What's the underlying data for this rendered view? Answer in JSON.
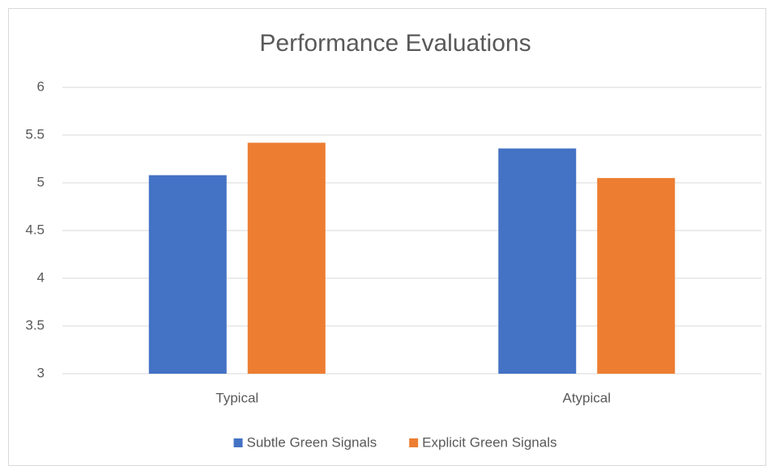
{
  "chart_data": {
    "type": "bar",
    "title": "Performance Evaluations",
    "categories": [
      "Typical",
      "Atypical"
    ],
    "series": [
      {
        "name": "Subtle Green Signals",
        "color": "#4472c4",
        "values": [
          5.08,
          5.36
        ]
      },
      {
        "name": "Explicit Green Signals",
        "color": "#ed7d31",
        "values": [
          5.42,
          5.05
        ]
      }
    ],
    "ylim": [
      3,
      6
    ],
    "yticks": [
      3,
      3.5,
      4,
      4.5,
      5,
      5.5,
      6
    ],
    "grid": true,
    "legend": "bottom"
  }
}
